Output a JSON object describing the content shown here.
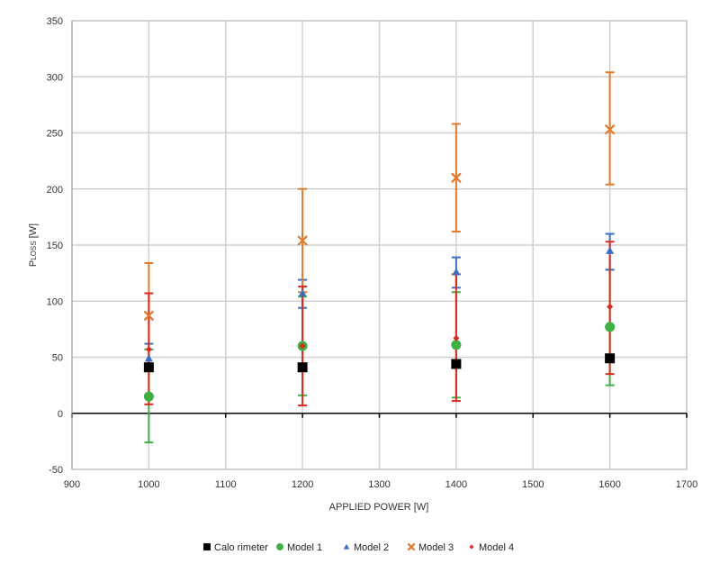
{
  "chart_data": {
    "type": "scatter",
    "title": "",
    "xlabel": "APPLIED POWER [W]",
    "ylabel": {
      "main": "P",
      "sub": "LOSS",
      "unit": " [W]"
    },
    "xlim": [
      900,
      1700
    ],
    "ylim": [
      -50,
      350
    ],
    "x_ticks": [
      900,
      1000,
      1100,
      1200,
      1300,
      1400,
      1500,
      1600,
      1700
    ],
    "y_ticks": [
      -50,
      0,
      50,
      100,
      150,
      200,
      250,
      300,
      350
    ],
    "grid": true,
    "legend_position": "bottom",
    "series": [
      {
        "name": "Calo rimeter",
        "marker": "square",
        "color": "#000000",
        "x": [
          1000,
          1200,
          1400,
          1600
        ],
        "y": [
          41,
          41,
          44,
          49
        ]
      },
      {
        "name": "Model 1",
        "marker": "circle",
        "color": "#3cb043",
        "x": [
          1000,
          1200,
          1400,
          1600
        ],
        "y": [
          15,
          60,
          61,
          77
        ],
        "err_low": [
          -26,
          16,
          14,
          25
        ],
        "err_high": [
          57,
          104,
          108,
          128
        ]
      },
      {
        "name": "Model 2",
        "marker": "triangle",
        "color": "#3a6fc4",
        "x": [
          1000,
          1200,
          1400,
          1600
        ],
        "y": [
          49,
          107,
          126,
          145
        ],
        "err_low": [
          38,
          94,
          112,
          128
        ],
        "err_high": [
          62,
          119,
          139,
          160
        ]
      },
      {
        "name": "Model 3",
        "marker": "x",
        "color": "#e07a2e",
        "x": [
          1000,
          1200,
          1400,
          1600
        ],
        "y": [
          87,
          154,
          210,
          253
        ],
        "err_low": [
          40,
          108,
          162,
          204
        ],
        "err_high": [
          134,
          200,
          258,
          304
        ]
      },
      {
        "name": "Model 4",
        "marker": "diamond",
        "color": "#d92b1e",
        "x": [
          1000,
          1200,
          1400,
          1600
        ],
        "y": [
          57,
          60,
          67,
          95
        ],
        "err_low": [
          8,
          7,
          11,
          35
        ],
        "err_high": [
          107,
          113,
          124,
          153
        ]
      }
    ]
  }
}
